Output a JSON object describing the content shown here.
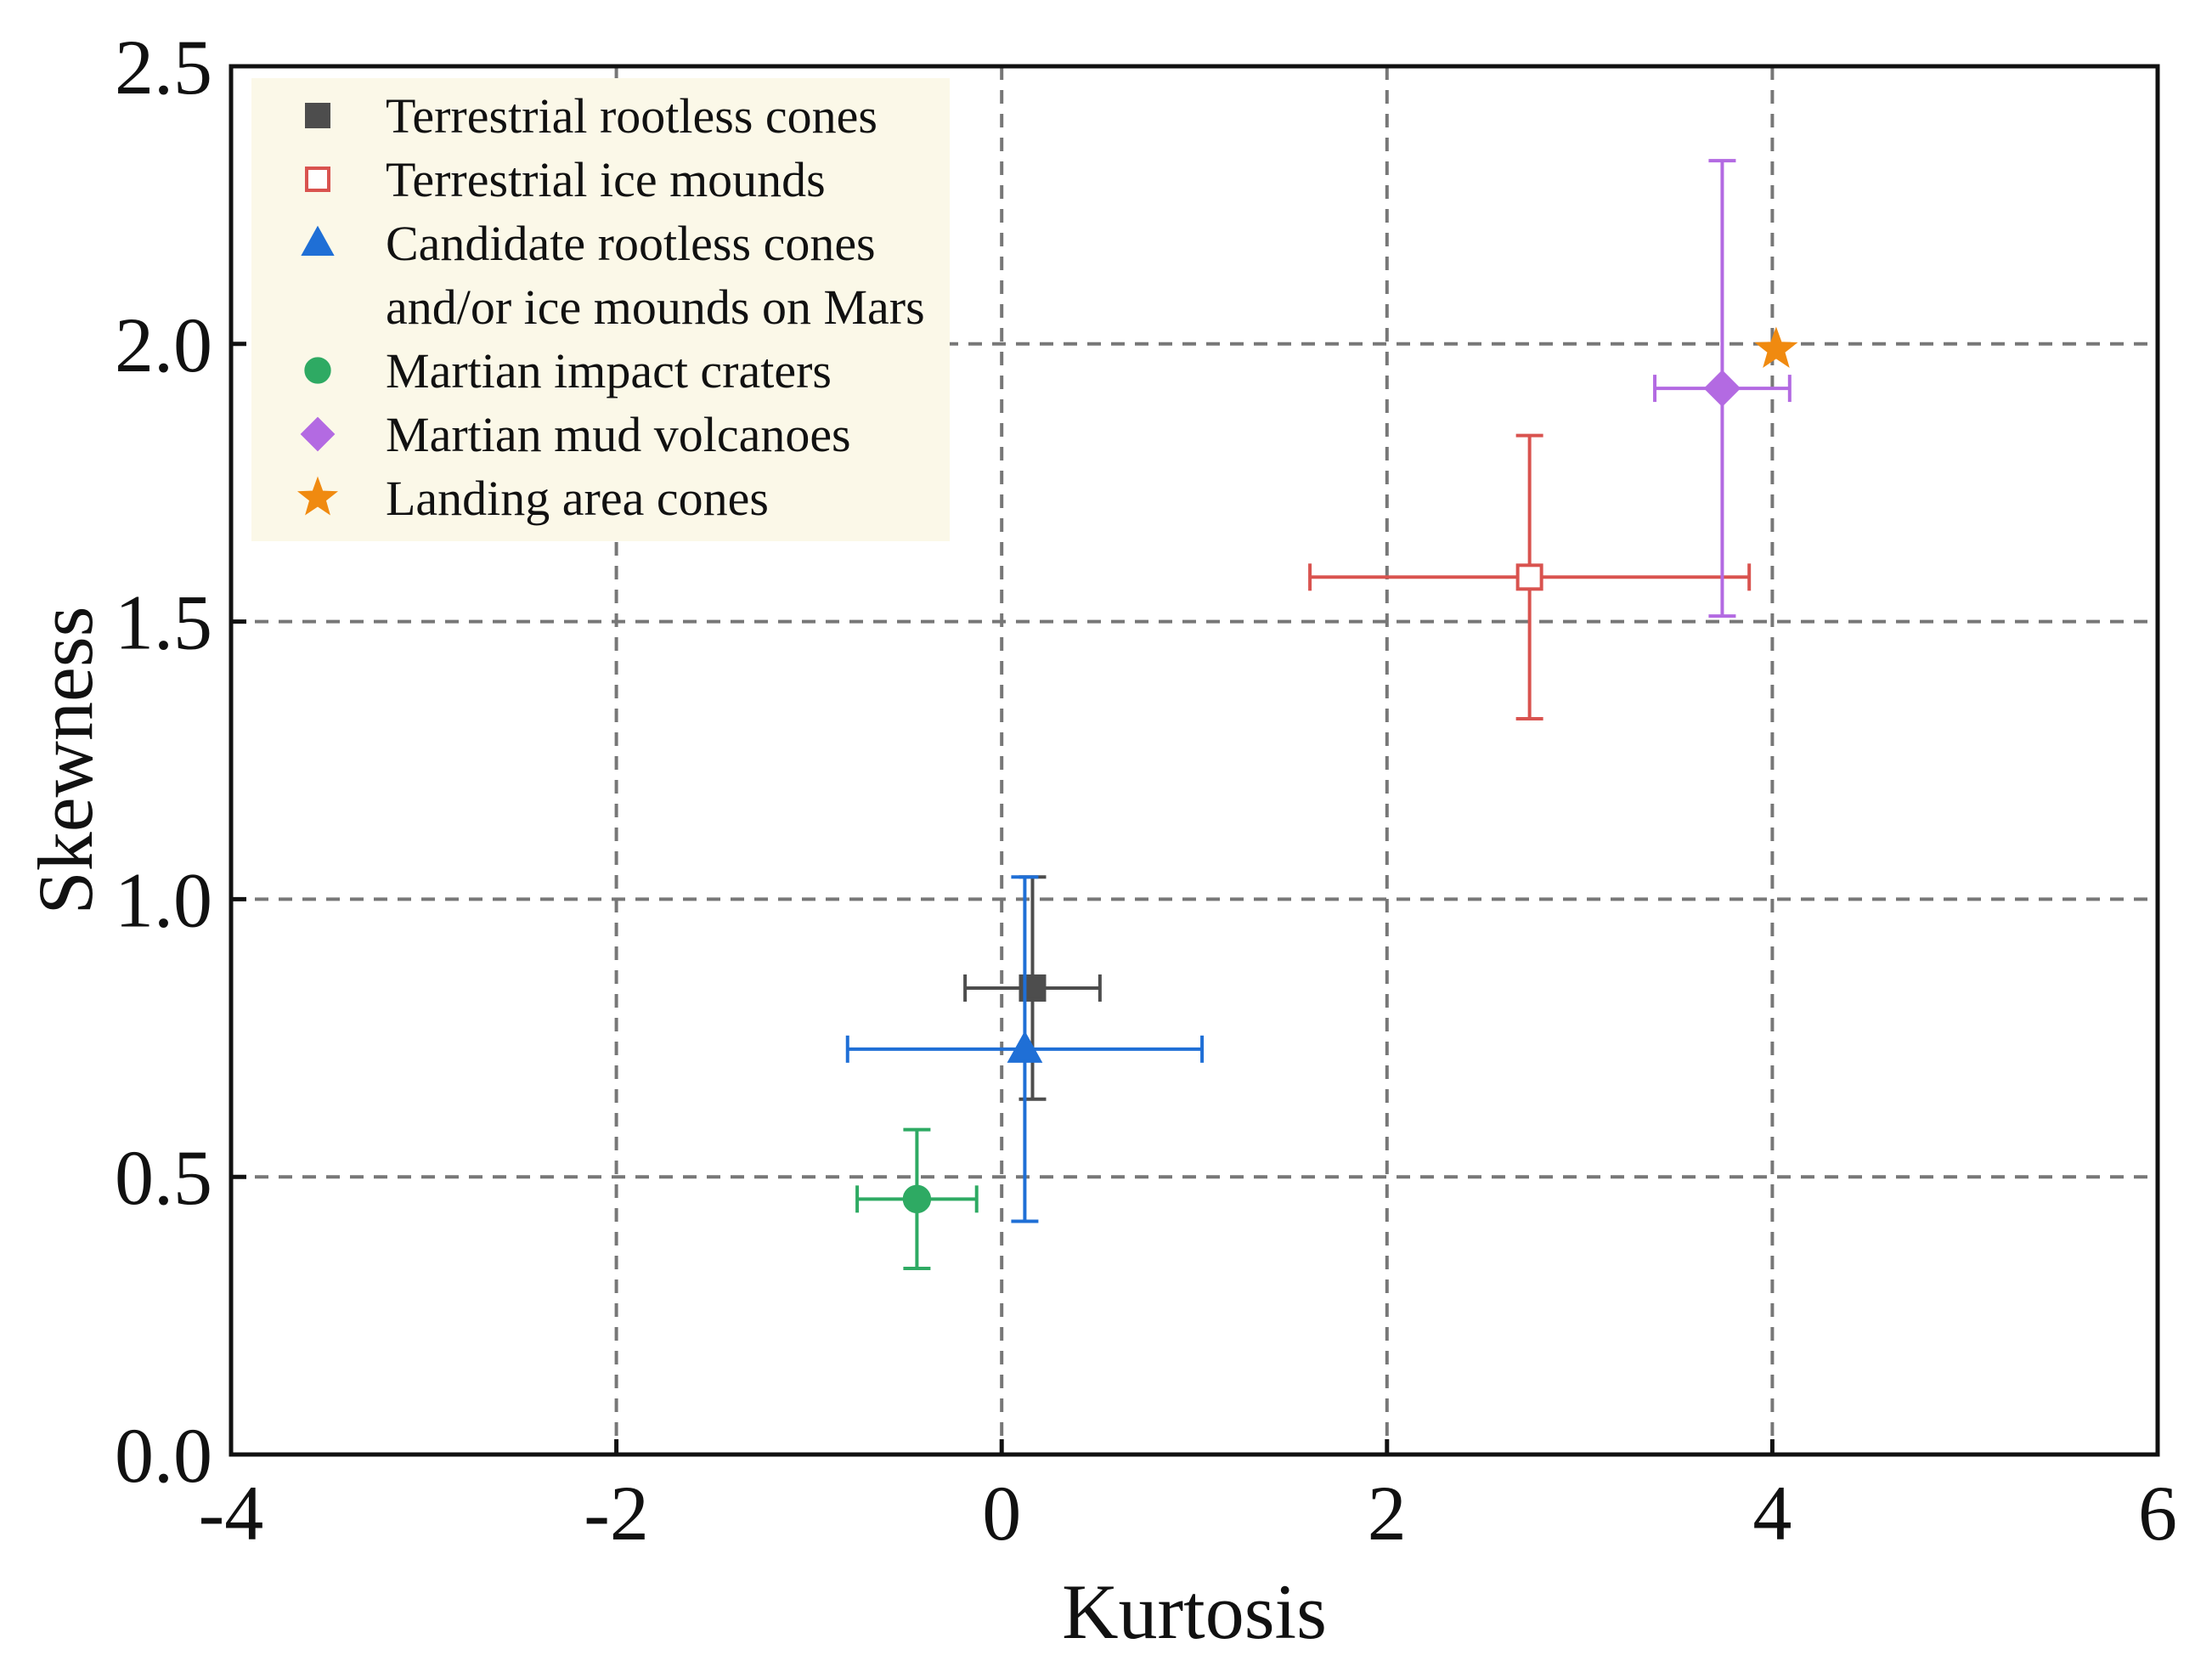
{
  "chart_data": {
    "type": "scatter",
    "title": "",
    "xlabel": "Kurtosis",
    "ylabel": "Skewness",
    "xlim": [
      -4,
      6
    ],
    "ylim": [
      0,
      2.5
    ],
    "xticks": [
      -4,
      -2,
      0,
      2,
      4,
      6
    ],
    "yticks": [
      0,
      0.5,
      1,
      1.5,
      2,
      2.5
    ],
    "xtick_labels": [
      "-4",
      "-2",
      "0",
      "2",
      "4",
      "6"
    ],
    "ytick_labels": [
      "0.0",
      "0.5",
      "1.0",
      "1.5",
      "2.0",
      "2.5"
    ],
    "grid": true,
    "legend_position": "top-left",
    "series": [
      {
        "name": "Terrestrial rootless cones",
        "marker": "square",
        "filled": true,
        "color": "#4d4d4d",
        "x": 0.16,
        "y": 0.84,
        "xerr": 0.35,
        "yerr": 0.2
      },
      {
        "name": "Terrestrial ice mounds",
        "marker": "square",
        "filled": false,
        "color": "#d9534f",
        "x": 2.74,
        "y": 1.58,
        "xerr": 1.14,
        "yerr": 0.255
      },
      {
        "name": "Candidate rootless cones and/or ice mounds on Mars",
        "legend_lines": [
          "Candidate rootless cones",
          "and/or ice mounds on Mars"
        ],
        "marker": "triangle",
        "filled": true,
        "color": "#1f6fd6",
        "x": 0.12,
        "y": 0.73,
        "xerr": 0.92,
        "yerr": 0.31
      },
      {
        "name": "Martian impact craters",
        "marker": "circle",
        "filled": true,
        "color": "#2eaa63",
        "x": -0.44,
        "y": 0.46,
        "xerr": 0.31,
        "yerr": 0.125
      },
      {
        "name": "Martian mud volcanoes",
        "marker": "diamond",
        "filled": true,
        "color": "#b36ae2",
        "x": 3.74,
        "y": 1.92,
        "xerr": 0.35,
        "yerr": 0.41
      },
      {
        "name": "Landing area cones",
        "marker": "star",
        "filled": true,
        "color": "#f08a10",
        "x": 4.02,
        "y": 1.99,
        "xerr": null,
        "yerr": null
      }
    ]
  }
}
